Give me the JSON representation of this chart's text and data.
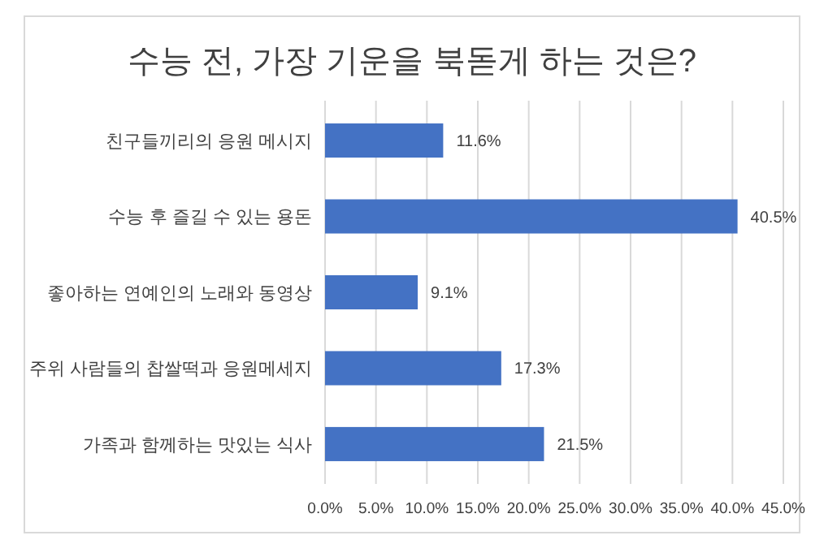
{
  "chart_data": {
    "type": "bar",
    "orientation": "horizontal",
    "title": "수능 전, 가장 기운을 북돋게 하는 것은?",
    "categories": [
      "친구들끼리의 응원 메시지",
      "수능 후 즐길 수 있는 용돈",
      "좋아하는 연예인의 노래와 동영상",
      "주위 사람들의 찹쌀떡과 응원메세지",
      "가족과 함께하는 맛있는 식사"
    ],
    "values": [
      11.6,
      40.5,
      9.1,
      17.3,
      21.5
    ],
    "value_labels": [
      "11.6%",
      "40.5%",
      "9.1%",
      "17.3%",
      "21.5%"
    ],
    "color": "#4472c4",
    "xlim": [
      0,
      45
    ],
    "xticks": [
      {
        "value": 0,
        "label": "0.0%"
      },
      {
        "value": 5,
        "label": "5.0%"
      },
      {
        "value": 10,
        "label": "10.0%"
      },
      {
        "value": 15,
        "label": "15.0%"
      },
      {
        "value": 20,
        "label": "20.0%"
      },
      {
        "value": 25,
        "label": "25.0%"
      },
      {
        "value": 30,
        "label": "30.0%"
      },
      {
        "value": 35,
        "label": "35.0%"
      },
      {
        "value": 40,
        "label": "40.0%"
      },
      {
        "value": 45,
        "label": "45.0%"
      }
    ],
    "grid": "x"
  }
}
